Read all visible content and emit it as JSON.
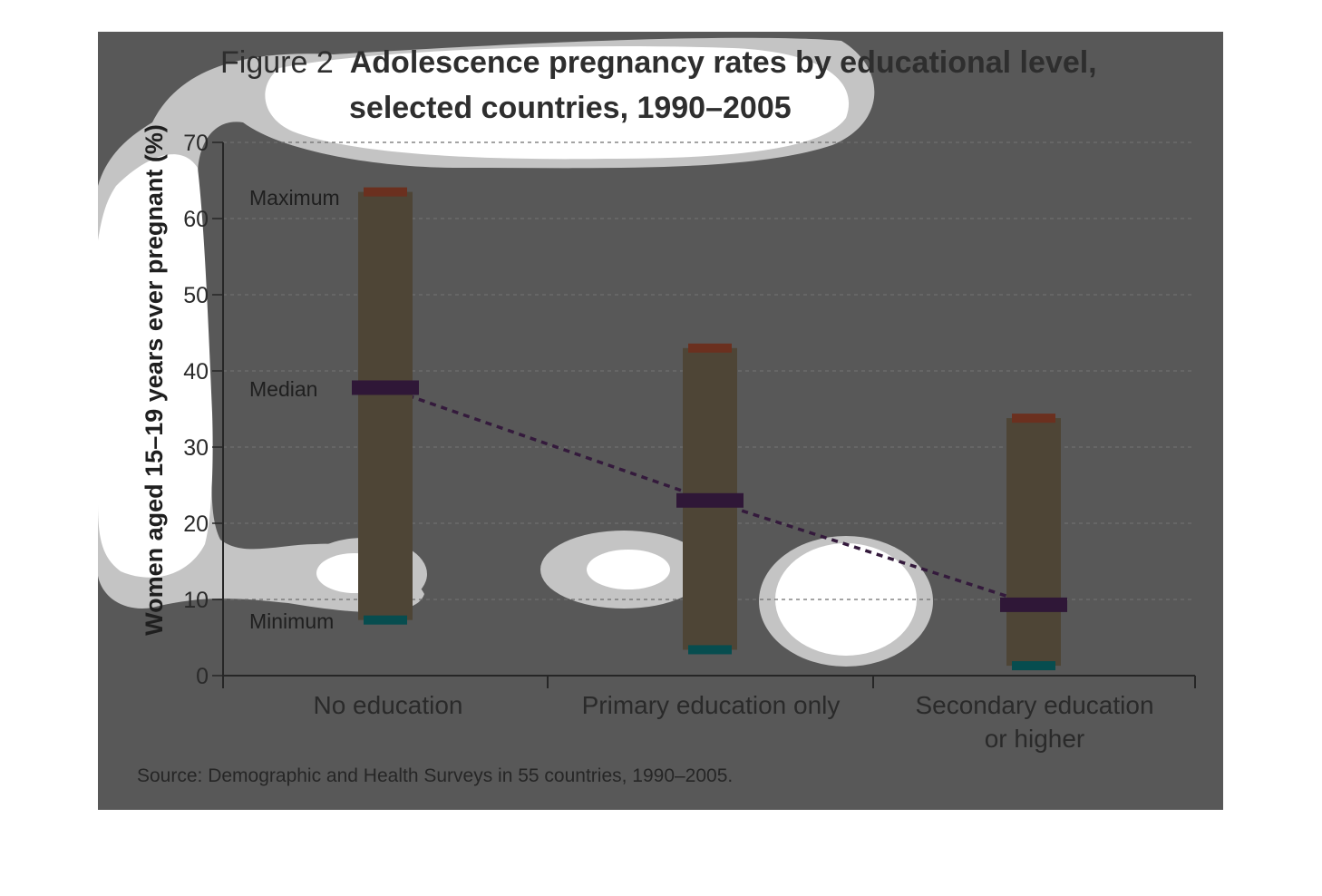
{
  "chart_data": {
    "type": "bar",
    "subtype": "range-with-median",
    "title_prefix": "Figure 2",
    "title_line1": "Adolescence pregnancy rates by educational level,",
    "title_line2": "selected countries, 1990–2005",
    "ylabel": "Women aged 15–19 years ever pregnant (%)",
    "ylim": [
      0,
      70
    ],
    "yticks": [
      0,
      10,
      20,
      30,
      40,
      50,
      60,
      70
    ],
    "grid": true,
    "categories": [
      {
        "line1": "No education",
        "line2": ""
      },
      {
        "line1": "Primary education only",
        "line2": ""
      },
      {
        "line1": "Secondary education",
        "line2": "or higher"
      }
    ],
    "series": [
      {
        "name": "Maximum",
        "values": [
          63.5,
          43,
          33.8
        ]
      },
      {
        "name": "Median",
        "values": [
          37.8,
          23,
          9.3
        ]
      },
      {
        "name": "Minimum",
        "values": [
          7.3,
          3.4,
          1.3
        ]
      }
    ],
    "annotations": {
      "maximum": "Maximum",
      "median": "Median",
      "minimum": "Minimum"
    },
    "source": "Source: Demographic and Health Surveys in 55 countries, 1990–2005.",
    "colors": {
      "panel": "#585858",
      "range_bar": "#4e4536",
      "max_cap": "#6b301f",
      "median_cap": "#2f1737",
      "min_cap": "#074d4f",
      "trend_line": "#341a3c",
      "grid": "#6e6e6e",
      "axis": "#262626"
    }
  }
}
